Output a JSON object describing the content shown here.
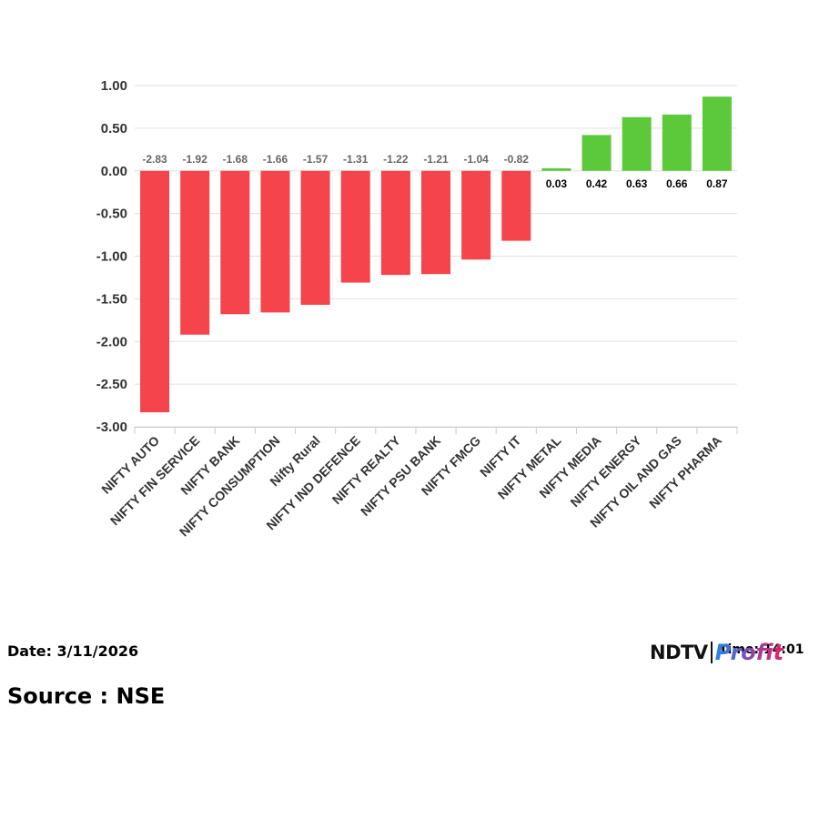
{
  "chart_data": {
    "type": "bar",
    "categories": [
      "NIFTY AUTO",
      "NIFTY FIN SERVICE",
      "NIFTY BANK",
      "NIFTY CONSUMPTION",
      "Nifty Rural",
      "NIFTY IND DEFENCE",
      "NIFTY REALTY",
      "NIFTY PSU BANK",
      "NIFTY FMCG",
      "NIFTY IT",
      "NIFTY METAL",
      "NIFTY MEDIA",
      "NIFTY ENERGY",
      "NIFTY OIL AND GAS",
      "NIFTY PHARMA"
    ],
    "values": [
      -2.83,
      -1.92,
      -1.68,
      -1.66,
      -1.57,
      -1.31,
      -1.22,
      -1.21,
      -1.04,
      -0.82,
      0.03,
      0.42,
      0.63,
      0.66,
      0.87
    ],
    "data_labels": [
      "-2.83",
      "-1.92",
      "-1.68",
      "-1.66",
      "-1.57",
      "-1.31",
      "-1.22",
      "-1.21",
      "-1.04",
      "-0.82",
      "0.03",
      "0.42",
      "0.63",
      "0.66",
      "0.87"
    ],
    "y_ticks": [
      "1.00",
      "0.50",
      "0.00",
      "-0.50",
      "-1.00",
      "-1.50",
      "-2.00",
      "-2.50",
      "-3.00"
    ],
    "ylim": [
      -3,
      1
    ],
    "title": "",
    "xlabel": "",
    "ylabel": "",
    "grid": true,
    "colors": {
      "negative": "#f5444b",
      "positive": "#5cc93b",
      "negative_label": "#666666",
      "positive_label": "#000000"
    }
  },
  "footer": {
    "date": "Date: 3/11/2026",
    "time": "Time: 14:01",
    "source": "Source : NSE"
  },
  "logo": {
    "ndtv": "NDTV",
    "profit": "Profit"
  }
}
